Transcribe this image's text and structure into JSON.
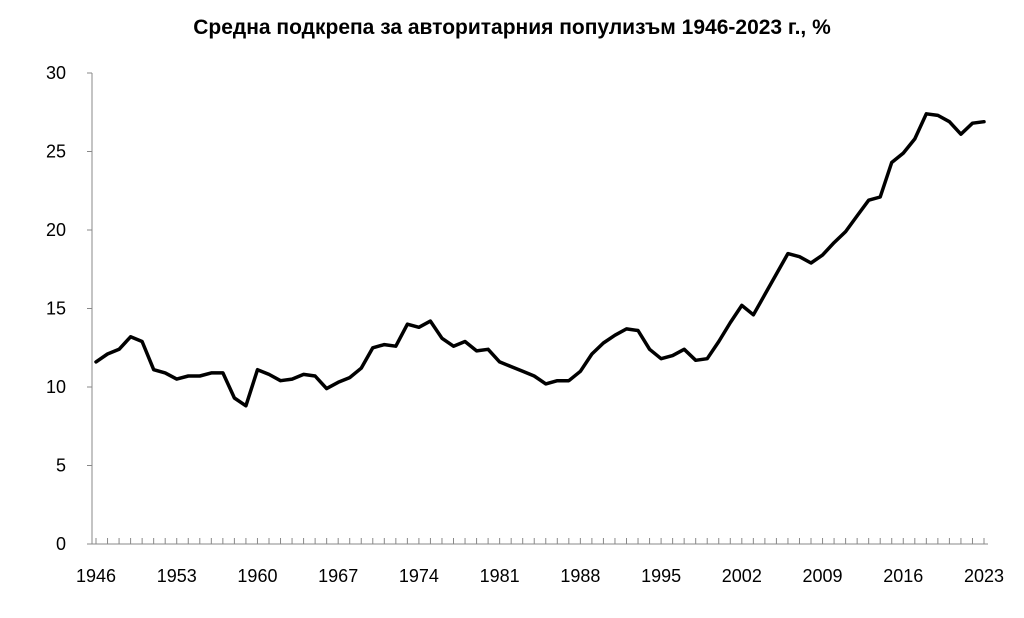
{
  "chart_data": {
    "type": "line",
    "title": "Средна подкрепа за авторитарния популизъм 1946-2023 г., %",
    "xlabel": "",
    "ylabel": "",
    "ylim": [
      0,
      30
    ],
    "y_ticks": [
      "0",
      "5",
      "10",
      "15",
      "20",
      "25",
      "30"
    ],
    "x_ticks": [
      "1946",
      "1953",
      "1960",
      "1967",
      "1974",
      "1981",
      "1988",
      "1995",
      "2002",
      "2009",
      "2016",
      "2023"
    ],
    "grid": false,
    "line_color": "#000000",
    "series": [
      {
        "x": [
          1946,
          1947,
          1948,
          1949,
          1950,
          1951,
          1952,
          1953,
          1954,
          1955,
          1956,
          1957,
          1958,
          1959,
          1960,
          1961,
          1962,
          1963,
          1964,
          1965,
          1966,
          1967,
          1968,
          1969,
          1970,
          1971,
          1972,
          1973,
          1974,
          1975,
          1976,
          1977,
          1978,
          1979,
          1980,
          1981,
          1982,
          1983,
          1984,
          1985,
          1986,
          1987,
          1988,
          1989,
          1990,
          1991,
          1992,
          1993,
          1994,
          1995,
          1996,
          1997,
          1998,
          1999,
          2000,
          2001,
          2002,
          2003,
          2004,
          2005,
          2006,
          2007,
          2008,
          2009,
          2010,
          2011,
          2012,
          2013,
          2014,
          2015,
          2016,
          2017,
          2018,
          2019,
          2020,
          2021,
          2022,
          2023
        ],
        "values": [
          11.6,
          12.1,
          12.4,
          13.2,
          12.9,
          11.1,
          10.9,
          10.5,
          10.7,
          10.7,
          10.9,
          10.9,
          9.3,
          8.8,
          11.1,
          10.8,
          10.4,
          10.5,
          10.8,
          10.7,
          9.9,
          10.3,
          10.6,
          11.2,
          12.5,
          12.7,
          12.6,
          14.0,
          13.8,
          14.2,
          13.1,
          12.6,
          12.9,
          12.3,
          12.4,
          11.6,
          11.3,
          11.0,
          10.7,
          10.2,
          10.4,
          10.4,
          11.0,
          12.1,
          12.8,
          13.3,
          13.7,
          13.6,
          12.4,
          11.8,
          12.0,
          12.4,
          11.7,
          11.8,
          12.9,
          14.1,
          15.2,
          14.6,
          15.9,
          17.2,
          18.5,
          18.3,
          17.9,
          18.4,
          19.2,
          19.9,
          20.9,
          21.9,
          22.1,
          24.3,
          24.9,
          25.8,
          27.4,
          27.3,
          26.9,
          26.1,
          26.8,
          26.9
        ]
      }
    ]
  }
}
